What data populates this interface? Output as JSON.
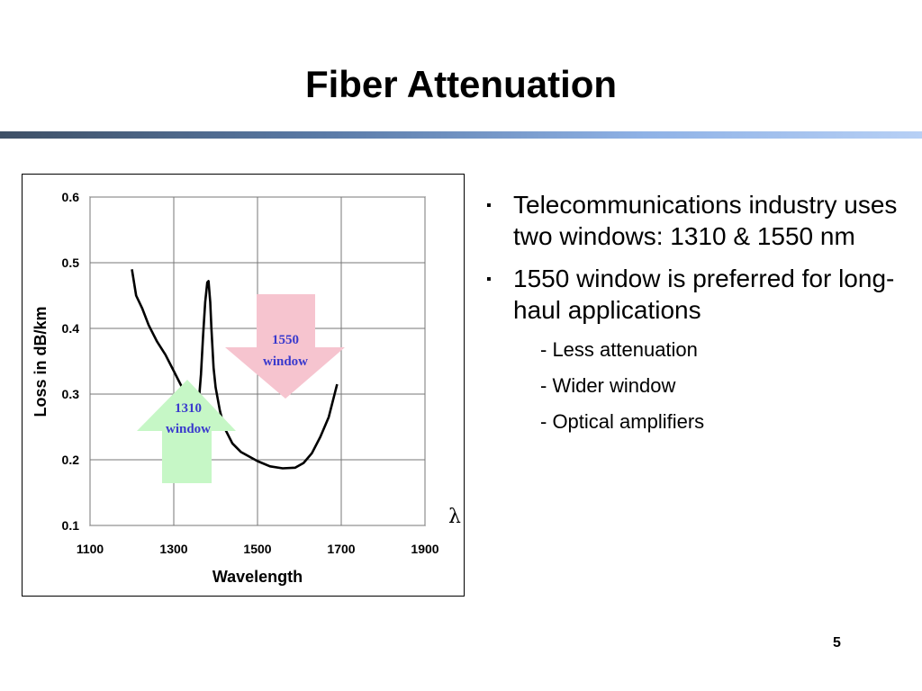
{
  "slide": {
    "title": "Fiber Attenuation",
    "page_number": "5",
    "lambda": "λ"
  },
  "bullets": [
    {
      "text": "Telecommunications industry uses two windows: 1310 & 1550 nm"
    },
    {
      "text": "1550 window is preferred for long-haul applications"
    }
  ],
  "sub_bullets": [
    {
      "text": "- Less attenuation"
    },
    {
      "text": "- Wider window"
    },
    {
      "text": "- Optical amplifiers"
    }
  ],
  "colors": {
    "header_rule_left": "#3e5066",
    "header_rule_right": "#b7d0f5",
    "arrow_1550": "#f6c4cf",
    "arrow_1310": "#c6f7c6",
    "arrow_text": "#3a3acd"
  },
  "arrows": [
    {
      "label_line1": "1550",
      "label_line2": "window",
      "direction": "down"
    },
    {
      "label_line1": "1310",
      "label_line2": "window",
      "direction": "up"
    }
  ],
  "chart_data": {
    "type": "line",
    "title": "",
    "xlabel": "Wavelength",
    "ylabel": "Loss in dB/km",
    "xlim": [
      1100,
      1900
    ],
    "ylim": [
      0.1,
      0.6
    ],
    "x_ticks": [
      "1100",
      "1300",
      "1500",
      "1700",
      "1900"
    ],
    "y_ticks": [
      "0.1",
      "0.2",
      "0.3",
      "0.4",
      "0.5",
      "0.6"
    ],
    "grid": true,
    "series": [
      {
        "x": [
          1200,
          1210,
          1225,
          1240,
          1260,
          1280,
          1300,
          1320,
          1340,
          1350,
          1360,
          1365,
          1370,
          1375,
          1380,
          1383,
          1387,
          1390,
          1395,
          1400,
          1410,
          1420,
          1440,
          1460,
          1480,
          1500,
          1530,
          1560,
          1590,
          1610,
          1630,
          1650,
          1670,
          1690
        ],
        "y": [
          0.49,
          0.45,
          0.43,
          0.405,
          0.38,
          0.36,
          0.335,
          0.31,
          0.29,
          0.285,
          0.29,
          0.33,
          0.39,
          0.44,
          0.47,
          0.472,
          0.44,
          0.4,
          0.34,
          0.31,
          0.275,
          0.25,
          0.225,
          0.212,
          0.205,
          0.198,
          0.19,
          0.187,
          0.188,
          0.195,
          0.21,
          0.235,
          0.265,
          0.315
        ]
      }
    ]
  }
}
